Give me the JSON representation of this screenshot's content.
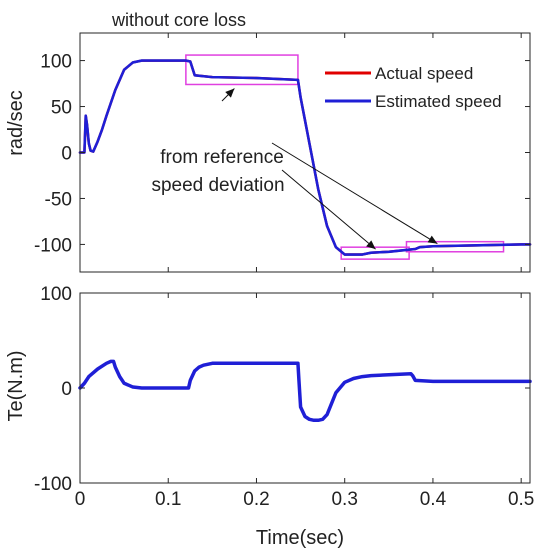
{
  "chart_data": [
    {
      "type": "line",
      "title": "without core loss",
      "xlabel": "",
      "ylabel": "rad/sec",
      "xlim": [
        0,
        0.51
      ],
      "ylim": [
        -130,
        130
      ],
      "yticks": [
        -100,
        -50,
        0,
        50,
        100
      ],
      "yticklabels": [
        "-100",
        "-50",
        "0",
        "50",
        "100"
      ],
      "xticks": [
        0,
        0.1,
        0.2,
        0.3,
        0.4,
        0.5
      ],
      "grid": false,
      "legend": {
        "placement": "top-right",
        "entries": [
          "Actual speed",
          "Estimated speed"
        ]
      },
      "annotation": {
        "line1": "speed deviation",
        "line2": "from reference"
      },
      "highlight_color": "#e040e0",
      "highlights": [
        {
          "x": [
            0.12,
            0.247
          ],
          "y": [
            74,
            106
          ]
        },
        {
          "x": [
            0.296,
            0.373
          ],
          "y": [
            -116,
            -103
          ]
        },
        {
          "x": [
            0.37,
            0.48
          ],
          "y": [
            -108,
            -97
          ]
        }
      ],
      "series": [
        {
          "name": "Actual speed",
          "color": "#e00000",
          "x": [
            0,
            0.005,
            0.0065,
            0.008,
            0.01,
            0.012,
            0.015,
            0.02,
            0.025,
            0.03,
            0.04,
            0.05,
            0.06,
            0.07,
            0.08,
            0.1,
            0.12,
            0.125,
            0.13,
            0.15,
            0.2,
            0.247,
            0.25,
            0.26,
            0.27,
            0.28,
            0.29,
            0.3,
            0.31,
            0.32,
            0.33,
            0.35,
            0.37,
            0.38,
            0.385,
            0.4,
            0.45,
            0.5,
            0.51
          ],
          "y": [
            0,
            0,
            40,
            30,
            10,
            2,
            1,
            12,
            25,
            40,
            68,
            90,
            98,
            100,
            100,
            100,
            100,
            99,
            84,
            82,
            81,
            79,
            60,
            10,
            -40,
            -80,
            -103,
            -111,
            -111,
            -111,
            -109,
            -108,
            -106,
            -105,
            -103,
            -102,
            -101,
            -100,
            -100
          ]
        },
        {
          "name": "Estimated speed",
          "color": "#1f1fd6",
          "x": [
            0,
            0.005,
            0.0065,
            0.008,
            0.01,
            0.012,
            0.015,
            0.02,
            0.025,
            0.03,
            0.04,
            0.05,
            0.06,
            0.07,
            0.08,
            0.1,
            0.12,
            0.125,
            0.13,
            0.15,
            0.2,
            0.247,
            0.25,
            0.26,
            0.27,
            0.28,
            0.29,
            0.3,
            0.31,
            0.32,
            0.33,
            0.35,
            0.37,
            0.38,
            0.385,
            0.4,
            0.45,
            0.5,
            0.51
          ],
          "y": [
            0,
            0,
            40,
            30,
            10,
            2,
            1,
            12,
            25,
            40,
            68,
            90,
            98,
            100,
            100,
            100,
            100,
            99,
            84,
            82,
            81,
            79,
            60,
            10,
            -40,
            -80,
            -103,
            -111,
            -111,
            -111,
            -109,
            -108,
            -106,
            -105,
            -103,
            -102,
            -101,
            -100,
            -100
          ]
        }
      ]
    },
    {
      "type": "line",
      "title": "",
      "xlabel": "Time(sec)",
      "ylabel": "Te(N.m)",
      "xlim": [
        0,
        0.51
      ],
      "ylim": [
        -100,
        100
      ],
      "yticks": [
        -100,
        0,
        100
      ],
      "yticklabels": [
        "-100",
        "0",
        "100"
      ],
      "xticks": [
        0,
        0.1,
        0.2,
        0.3,
        0.4,
        0.5
      ],
      "xticklabels": [
        "0",
        "0.1",
        "0.2",
        "0.3",
        "0.4",
        "0.5"
      ],
      "grid": false,
      "series": [
        {
          "color": "#1f1fd6",
          "x": [
            0,
            0.005,
            0.01,
            0.02,
            0.03,
            0.035,
            0.038,
            0.04,
            0.045,
            0.05,
            0.06,
            0.07,
            0.08,
            0.1,
            0.12,
            0.123,
            0.125,
            0.13,
            0.135,
            0.14,
            0.15,
            0.2,
            0.24,
            0.247,
            0.248,
            0.25,
            0.255,
            0.26,
            0.265,
            0.27,
            0.275,
            0.28,
            0.29,
            0.3,
            0.31,
            0.32,
            0.33,
            0.35,
            0.375,
            0.377,
            0.38,
            0.4,
            0.45,
            0.5,
            0.51
          ],
          "y": [
            0,
            5,
            12,
            20,
            26,
            28,
            28,
            22,
            12,
            5,
            1,
            0,
            0,
            0,
            0,
            0,
            8,
            18,
            22,
            24,
            26,
            26,
            26,
            26,
            10,
            -20,
            -30,
            -33,
            -34,
            -34,
            -33,
            -28,
            -5,
            6,
            10,
            12,
            13,
            14,
            15,
            13,
            8,
            7,
            7,
            7,
            7
          ]
        }
      ]
    }
  ]
}
